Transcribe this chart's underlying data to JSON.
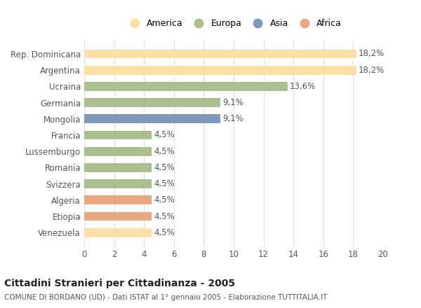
{
  "categories": [
    "Rep. Dominicana",
    "Argentina",
    "Ucraina",
    "Germania",
    "Mongolia",
    "Francia",
    "Lussemburgo",
    "Romania",
    "Svizzera",
    "Algeria",
    "Etiopia",
    "Venezuela"
  ],
  "values": [
    18.2,
    18.2,
    13.6,
    9.1,
    9.1,
    4.5,
    4.5,
    4.5,
    4.5,
    4.5,
    4.5,
    4.5
  ],
  "labels": [
    "18,2%",
    "18,2%",
    "13,6%",
    "9,1%",
    "9,1%",
    "4,5%",
    "4,5%",
    "4,5%",
    "4,5%",
    "4,5%",
    "4,5%",
    "4,5%"
  ],
  "colors": [
    "#FCDFA6",
    "#FCDFA6",
    "#ABBE8F",
    "#ABBE8F",
    "#8098BC",
    "#ABBE8F",
    "#ABBE8F",
    "#ABBE8F",
    "#ABBE8F",
    "#E9A882",
    "#E9A882",
    "#FCDFA6"
  ],
  "legend_labels": [
    "America",
    "Europa",
    "Asia",
    "Africa"
  ],
  "legend_colors": [
    "#FCDFA6",
    "#ABBE8F",
    "#8098BC",
    "#E9A882"
  ],
  "xlim": [
    0,
    20
  ],
  "xticks": [
    0,
    2,
    4,
    6,
    8,
    10,
    12,
    14,
    16,
    18,
    20
  ],
  "title": "Cittadini Stranieri per Cittadinanza - 2005",
  "subtitle": "COMUNE DI BORDANO (UD) - Dati ISTAT al 1° gennaio 2005 - Elaborazione TUTTITALIA.IT",
  "bg_color": "#FFFFFF",
  "bar_height": 0.55,
  "label_fontsize": 8.5,
  "title_fontsize": 10,
  "subtitle_fontsize": 7.5,
  "tick_fontsize": 8.5,
  "legend_fontsize": 9
}
